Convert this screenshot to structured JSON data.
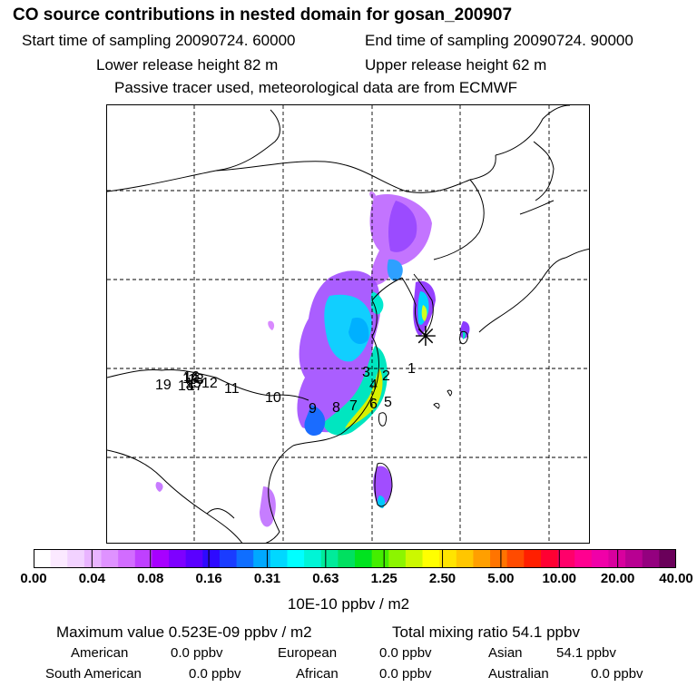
{
  "header": {
    "title": "CO  source contributions in nested domain for gosan_200907",
    "start_time": "Start time of sampling 20090724. 60000",
    "end_time": "End time of sampling 20090724. 90000",
    "lower_height": "Lower release height   82 m",
    "upper_height": "Upper release height   62 m",
    "note": "Passive tracer used, meteorological data are from ECMWF"
  },
  "map": {
    "receptor_symbol": "✳",
    "region_labels": [
      "1",
      "2",
      "3",
      "4",
      "5",
      "6",
      "7",
      "8",
      "9",
      "10",
      "11",
      "12",
      "13",
      "14",
      "15",
      "16",
      "17",
      "18",
      "19"
    ]
  },
  "colorbar": {
    "colors": [
      "#ffffff",
      "#fbe9ff",
      "#f2d2ff",
      "#e9b4ff",
      "#df92ff",
      "#d26cff",
      "#bf40ff",
      "#a700ff",
      "#7e00ff",
      "#5a00ff",
      "#2e0aff",
      "#1a3cff",
      "#0f6eff",
      "#00a8ff",
      "#00d8ff",
      "#00ffff",
      "#00f5d6",
      "#00eb9a",
      "#00e060",
      "#00e31f",
      "#44ee00",
      "#8cf500",
      "#ccf800",
      "#ffff00",
      "#ffe400",
      "#ffc600",
      "#ff9f00",
      "#ff7400",
      "#ff4b00",
      "#ff1f00",
      "#ff0032",
      "#ff006a",
      "#ff0090",
      "#f000a8",
      "#d8009e",
      "#b80092",
      "#94007f",
      "#6a005a"
    ],
    "ticks": [
      "0.00",
      "0.04",
      "0.08",
      "0.16",
      "0.31",
      "0.63",
      "1.25",
      "2.50",
      "5.00",
      "10.00",
      "20.00",
      "40.00"
    ],
    "units": "10E-10 ppbv / m2"
  },
  "summary": {
    "max_value": "Maximum value  0.523E-09 ppbv / m2",
    "total": "Total mixing ratio       54.1 ppbv",
    "regions": [
      {
        "label": "American",
        "value": "0.0 ppbv"
      },
      {
        "label": "European",
        "value": "0.0 ppbv"
      },
      {
        "label": "Asian",
        "value": "54.1 ppbv"
      },
      {
        "label": "South American",
        "value": "0.0 ppbv"
      },
      {
        "label": "African",
        "value": "0.0 ppbv"
      },
      {
        "label": "Australian",
        "value": "0.0 ppbv"
      }
    ]
  }
}
